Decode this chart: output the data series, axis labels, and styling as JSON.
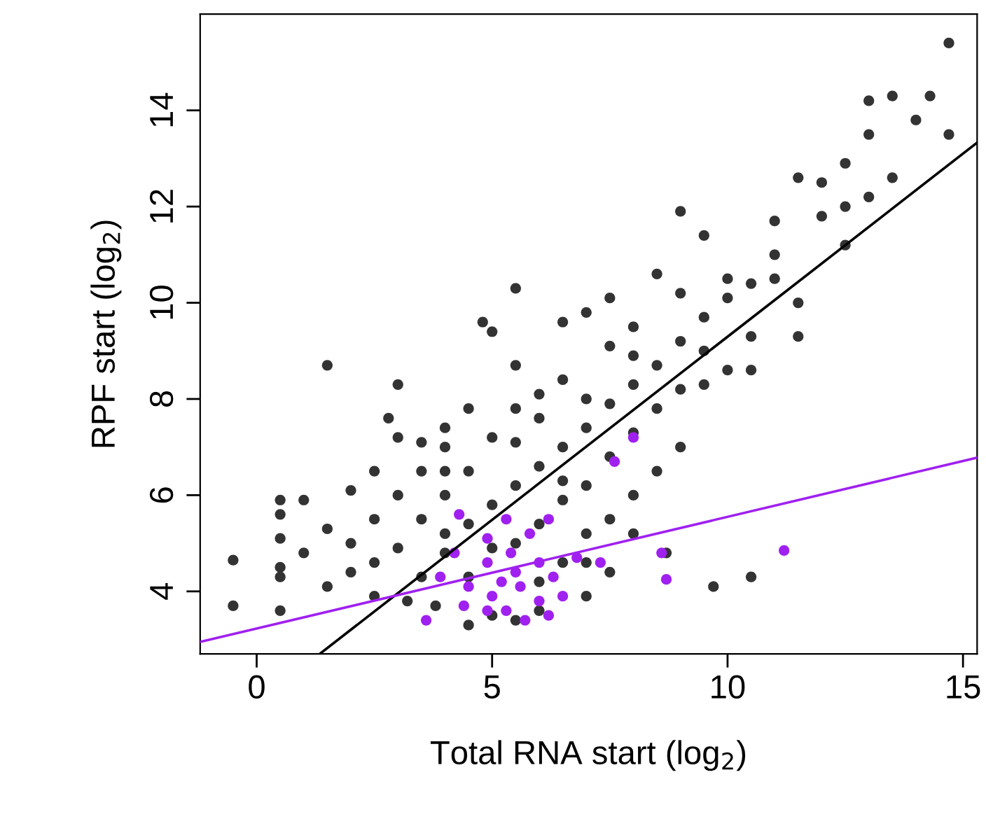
{
  "chart_data": {
    "type": "scatter",
    "xlabel": "Total RNA start (log$_{2}$)",
    "ylabel": "RPF start (log$_{2}$)",
    "xlim": [
      -1.2,
      15.3
    ],
    "ylim": [
      2.7,
      16.0
    ],
    "xticks": [
      0,
      5,
      10,
      15
    ],
    "yticks": [
      4,
      6,
      8,
      10,
      12,
      14
    ],
    "grid": false,
    "legend": false,
    "marker": "circle",
    "series": [
      {
        "color": "#333333",
        "x": [
          -0.5,
          -0.5,
          0.5,
          0.5,
          0.5,
          0.5,
          0.5,
          0.5,
          1.0,
          1.0,
          1.5,
          1.5,
          1.5,
          2,
          2,
          2.5,
          2.5,
          3,
          3,
          3.2,
          3.5,
          4,
          4,
          4.5,
          4.8,
          5,
          5.5,
          6.5,
          5.5,
          6,
          7,
          7,
          7.5,
          8,
          8.5,
          9,
          9.5,
          10,
          9.5,
          9.5,
          10.5,
          11,
          11,
          11.5,
          12,
          12.5,
          13,
          13,
          13.5,
          14,
          14.3,
          14.7,
          14.7,
          13.5,
          12.5,
          11.5,
          10.5,
          10.5,
          9.7,
          8.7,
          7.5,
          7.0,
          5.5,
          4.5,
          5,
          6,
          3,
          3.5,
          4,
          4.5,
          5,
          5.5,
          6,
          6.5,
          7,
          7.5,
          8,
          8.5,
          9,
          9.5,
          10,
          10.5,
          11,
          12,
          4.5,
          5,
          5.5,
          6,
          6.5,
          7,
          7.5,
          8,
          8.5,
          9,
          3.5,
          4,
          4,
          5.5,
          6,
          4.5,
          3,
          2.5,
          2,
          2.5,
          7,
          7.5,
          8,
          6.5,
          8.5,
          9,
          6,
          7,
          3.8,
          2.8,
          3.5,
          5,
          5.5,
          6.5,
          4,
          11.5,
          12.5,
          13,
          10,
          9,
          8,
          7.5,
          6.5,
          8
        ],
        "values": [
          4.65,
          3.7,
          5.9,
          5.6,
          5.1,
          4.5,
          4.3,
          3.6,
          5.9,
          4.8,
          8.7,
          5.3,
          4.1,
          6.1,
          5.0,
          6.5,
          3.9,
          7.2,
          8.3,
          3.8,
          7.1,
          7.4,
          6.5,
          7.8,
          9.6,
          9.4,
          10.3,
          9.6,
          8.7,
          8.1,
          9.8,
          8.0,
          10.1,
          9.5,
          10.6,
          11.9,
          11.4,
          10.5,
          9.0,
          8.3,
          9.3,
          10.5,
          11.7,
          12.6,
          12.5,
          12.9,
          13.5,
          14.2,
          14.3,
          13.8,
          14.3,
          15.4,
          13.5,
          12.6,
          11.2,
          10.0,
          8.6,
          4.3,
          4.1,
          4.8,
          4.4,
          3.9,
          3.4,
          3.3,
          3.5,
          3.6,
          4.9,
          5.5,
          6.0,
          5.4,
          5.8,
          6.2,
          6.6,
          7.0,
          7.4,
          7.9,
          8.3,
          8.7,
          9.2,
          9.7,
          10.1,
          10.4,
          11.0,
          11.8,
          4.3,
          4.9,
          5.0,
          5.4,
          5.9,
          6.2,
          6.8,
          7.3,
          7.8,
          8.2,
          4.3,
          4.8,
          5.2,
          7.1,
          7.6,
          6.5,
          6.0,
          5.5,
          4.4,
          4.6,
          5.2,
          5.5,
          6.0,
          4.6,
          6.5,
          7.0,
          4.2,
          4.6,
          3.7,
          7.6,
          6.5,
          7.2,
          7.8,
          8.4,
          7.0,
          9.3,
          12.0,
          12.2,
          8.6,
          10.2,
          8.9,
          9.1,
          6.3,
          5.2
        ]
      },
      {
        "color": "#a020f0",
        "x": [
          4.3,
          4.9,
          5.3,
          5.8,
          6.2,
          7.6,
          8,
          4.9,
          5.4,
          6.0,
          5.5,
          5.6,
          5.2,
          6.3,
          4.2,
          3.9,
          4.5,
          3.6,
          4.9,
          5.3,
          5.7,
          6.2,
          6.5,
          5.0,
          6.8,
          8.6,
          8.7,
          11.2,
          7.3,
          6,
          4.4
        ],
        "values": [
          5.6,
          5.1,
          5.5,
          5.2,
          5.5,
          6.7,
          7.2,
          4.6,
          4.8,
          4.6,
          4.4,
          4.1,
          4.2,
          4.3,
          4.8,
          4.3,
          4.1,
          3.4,
          3.6,
          3.6,
          3.4,
          3.5,
          3.9,
          3.9,
          4.7,
          4.8,
          4.25,
          4.85,
          4.6,
          3.8,
          3.7
        ]
      },
      {
        "type": "line",
        "marker": "none",
        "color": "#000000",
        "x": [
          1.34,
          15.3
        ],
        "values": [
          2.7,
          13.33
        ]
      },
      {
        "type": "line",
        "marker": "none",
        "color": "#a020f0",
        "x": [
          -1.2,
          15.3
        ],
        "values": [
          2.95,
          6.78
        ]
      }
    ]
  }
}
